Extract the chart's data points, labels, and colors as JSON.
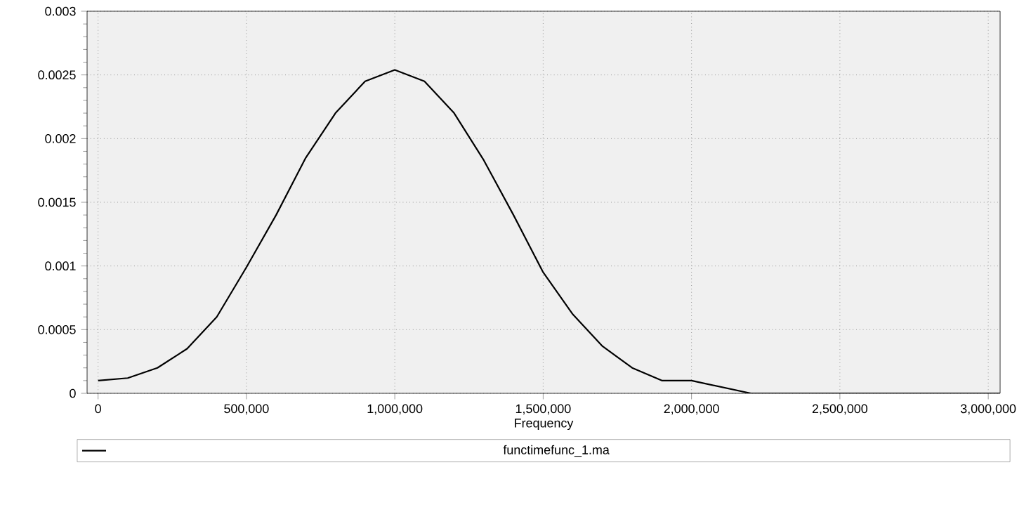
{
  "chart_data": {
    "type": "line",
    "xlabel": "Frequency",
    "x": [
      0,
      100000,
      200000,
      300000,
      400000,
      500000,
      600000,
      700000,
      800000,
      900000,
      1000000,
      1100000,
      1200000,
      1300000,
      1400000,
      1500000,
      1600000,
      1700000,
      1800000,
      1900000,
      2000000,
      2200000,
      2500000,
      3040000
    ],
    "series": [
      {
        "name": "functimefunc_1.ma",
        "color": "#000000",
        "values": [
          0.0001,
          0.00012,
          0.0002,
          0.00035,
          0.0006,
          0.00099,
          0.0014,
          0.00185,
          0.0022,
          0.00245,
          0.00254,
          0.00245,
          0.0022,
          0.00183,
          0.0014,
          0.00095,
          0.00062,
          0.00037,
          0.0002,
          0.0001,
          0.0001,
          0,
          0,
          0
        ]
      }
    ],
    "xlim": [
      -37000,
      3040000
    ],
    "ylim": [
      0,
      0.003
    ],
    "xticks": [
      {
        "value": 0,
        "label": "0"
      },
      {
        "value": 500000,
        "label": "500,000"
      },
      {
        "value": 1000000,
        "label": "1,000,000"
      },
      {
        "value": 1500000,
        "label": "1,500,000"
      },
      {
        "value": 2000000,
        "label": "2,000,000"
      },
      {
        "value": 2500000,
        "label": "2,500,000"
      },
      {
        "value": 3000000,
        "label": "3,000,000"
      }
    ],
    "yticks": [
      {
        "value": 0,
        "label": "0"
      },
      {
        "value": 0.0005,
        "label": "0.0005"
      },
      {
        "value": 0.001,
        "label": "0.001"
      },
      {
        "value": 0.0015,
        "label": "0.0015"
      },
      {
        "value": 0.002,
        "label": "0.002"
      },
      {
        "value": 0.0025,
        "label": "0.0025"
      },
      {
        "value": 0.003,
        "label": "0.003"
      }
    ],
    "grid": true,
    "legend": "bottom",
    "marker": "none",
    "line_style": "solid"
  }
}
